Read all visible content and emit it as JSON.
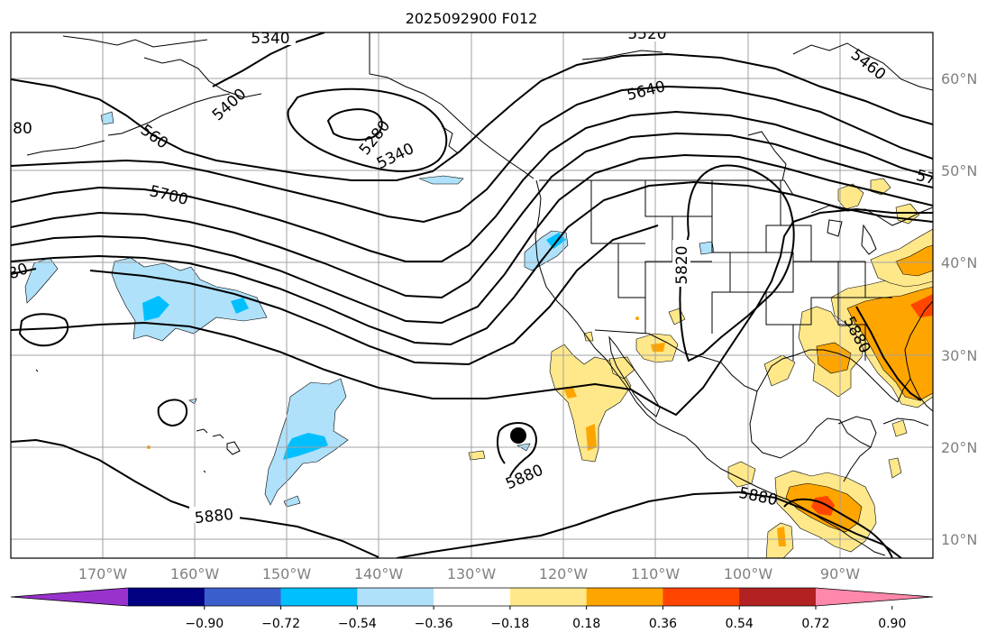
{
  "title": "2025092900 F012",
  "lon_ticks": [
    "170°W",
    "160°W",
    "150°W",
    "140°W",
    "130°W",
    "120°W",
    "110°W",
    "100°W",
    "90°W"
  ],
  "lat_ticks": [
    "60°N",
    "50°N",
    "40°N",
    "30°N",
    "20°N",
    "10°N"
  ],
  "colorbar": {
    "colors": [
      "#9932cc",
      "#000080",
      "#3a5fcd",
      "#00bfff",
      "#afe1fa",
      "#ffffff",
      "#ffe88a",
      "#ffa500",
      "#ff4500",
      "#b22222",
      "#ff88aa"
    ],
    "tick_labels": [
      "−0.90",
      "−0.72",
      "−0.54",
      "−0.36",
      "−0.18",
      "0.18",
      "0.36",
      "0.54",
      "0.72",
      "0.90"
    ]
  },
  "contour_labels": [
    "5340",
    "5520",
    "5460",
    "5400",
    "5640",
    "80",
    "560",
    "5280",
    "5340",
    "5700",
    "57",
    "80",
    "5820",
    "5880",
    "5880",
    "5880",
    "5880"
  ],
  "marker": "storm-center-dot"
}
